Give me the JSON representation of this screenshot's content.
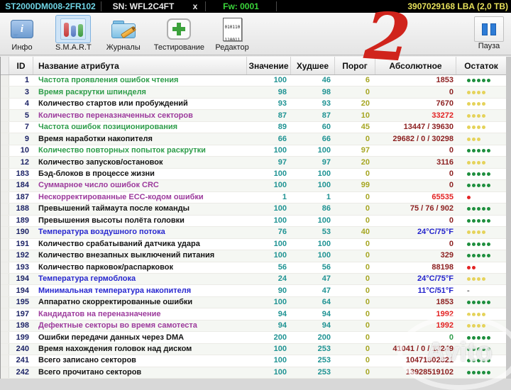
{
  "title_bar": {
    "model": "ST2000DM008-2FR102",
    "serial": "SN: WFL2C4FT",
    "x_label": "x",
    "firmware": "Fw: 0001",
    "capacity": "3907029168 LBA (2,0 TB)"
  },
  "toolbar": {
    "buttons": [
      {
        "label": "Инфо",
        "icon": "info-icon",
        "active": false
      },
      {
        "label": "S.M.A.R.T",
        "icon": "smart-icon",
        "active": true
      },
      {
        "label": "Журналы",
        "icon": "journals-icon",
        "active": false
      },
      {
        "label": "Тестирование",
        "icon": "testing-icon",
        "active": false
      },
      {
        "label": "Редактор",
        "icon": "editor-icon",
        "active": false
      }
    ],
    "editor_icon_text": "010110\n110011\n101000\n0001",
    "pause_label": "Пауза"
  },
  "annotation": {
    "text": "2",
    "color": "#d0241c"
  },
  "watermark": "Avito",
  "palette": {
    "id": "#1c2366",
    "name": {
      "green": "#2e9d4a",
      "black": "#141414",
      "purple": "#9c3a9c",
      "blue": "#2727cf"
    },
    "value": "#1f9393",
    "threshold": "#a6a622",
    "absolute": {
      "maroon": "#8c1f1f",
      "red": "#e32222",
      "blue": "#2222cc",
      "green": "#2e9d4a"
    },
    "dots": {
      "green": "#1e8f3e",
      "yellow": "#e5d35a",
      "red": "#e32424"
    },
    "dash": "#666666"
  },
  "table": {
    "columns": [
      "ID",
      "Название атрибута",
      "Значение",
      "Худшее",
      "Порог",
      "Абсолютное",
      "Остаток"
    ],
    "rows": [
      {
        "id": "1",
        "name": "Частота проявления ошибок чтения",
        "name_color": "green",
        "value": "100",
        "worst": "46",
        "threshold": "6",
        "absolute": "1853",
        "absolute_color": "maroon",
        "remain_dots": 5,
        "remain_color": "green"
      },
      {
        "id": "3",
        "name": "Время раскрутки шпинделя",
        "name_color": "green",
        "value": "98",
        "worst": "98",
        "threshold": "0",
        "absolute": "0",
        "absolute_color": "maroon",
        "remain_dots": 4,
        "remain_color": "yellow"
      },
      {
        "id": "4",
        "name": "Количество стартов или пробуждений",
        "name_color": "black",
        "value": "93",
        "worst": "93",
        "threshold": "20",
        "absolute": "7670",
        "absolute_color": "maroon",
        "remain_dots": 4,
        "remain_color": "yellow"
      },
      {
        "id": "5",
        "name": "Количество переназначенных секторов",
        "name_color": "purple",
        "value": "87",
        "worst": "87",
        "threshold": "10",
        "absolute": "33272",
        "absolute_color": "red",
        "remain_dots": 4,
        "remain_color": "yellow"
      },
      {
        "id": "7",
        "name": "Частота ошибок позиционирования",
        "name_color": "green",
        "value": "89",
        "worst": "60",
        "threshold": "45",
        "absolute": "13447 / 39630",
        "absolute_color": "maroon",
        "remain_dots": 4,
        "remain_color": "yellow"
      },
      {
        "id": "9",
        "name": "Время наработки накопителя",
        "name_color": "black",
        "value": "66",
        "worst": "66",
        "threshold": "0",
        "absolute": "29682 / 0 / 30298",
        "absolute_color": "maroon",
        "remain_dots": 3,
        "remain_color": "yellow"
      },
      {
        "id": "10",
        "name": "Количество повторных попыток раскрутки",
        "name_color": "green",
        "value": "100",
        "worst": "100",
        "threshold": "97",
        "absolute": "0",
        "absolute_color": "maroon",
        "remain_dots": 5,
        "remain_color": "green"
      },
      {
        "id": "12",
        "name": "Количество запусков/остановок",
        "name_color": "black",
        "value": "97",
        "worst": "97",
        "threshold": "20",
        "absolute": "3116",
        "absolute_color": "maroon",
        "remain_dots": 4,
        "remain_color": "yellow"
      },
      {
        "id": "183",
        "name": "Бэд-блоков в процессе жизни",
        "name_color": "black",
        "value": "100",
        "worst": "100",
        "threshold": "0",
        "absolute": "0",
        "absolute_color": "maroon",
        "remain_dots": 5,
        "remain_color": "green"
      },
      {
        "id": "184",
        "name": "Суммарное число ошибок CRC",
        "name_color": "purple",
        "value": "100",
        "worst": "100",
        "threshold": "99",
        "absolute": "0",
        "absolute_color": "maroon",
        "remain_dots": 5,
        "remain_color": "green"
      },
      {
        "id": "187",
        "name": "Нескорректированные ECC-кодом ошибки",
        "name_color": "purple",
        "value": "1",
        "worst": "1",
        "threshold": "0",
        "absolute": "65535",
        "absolute_color": "red",
        "remain_dots": 1,
        "remain_color": "red"
      },
      {
        "id": "188",
        "name": "Превышений таймаута после команды",
        "name_color": "black",
        "value": "100",
        "worst": "86",
        "threshold": "0",
        "absolute": "75 / 76 / 902",
        "absolute_color": "maroon",
        "remain_dots": 5,
        "remain_color": "green"
      },
      {
        "id": "189",
        "name": "Превышения высоты полёта головки",
        "name_color": "black",
        "value": "100",
        "worst": "100",
        "threshold": "0",
        "absolute": "0",
        "absolute_color": "maroon",
        "remain_dots": 5,
        "remain_color": "green"
      },
      {
        "id": "190",
        "name": "Температура воздушного потока",
        "name_color": "blue",
        "value": "76",
        "worst": "53",
        "threshold": "40",
        "absolute": "24°C/75°F",
        "absolute_color": "blue",
        "remain_dots": 4,
        "remain_color": "yellow"
      },
      {
        "id": "191",
        "name": "Количество срабатываний датчика удара",
        "name_color": "black",
        "value": "100",
        "worst": "100",
        "threshold": "0",
        "absolute": "0",
        "absolute_color": "maroon",
        "remain_dots": 5,
        "remain_color": "green"
      },
      {
        "id": "192",
        "name": "Количество внезапных выключений питания",
        "name_color": "black",
        "value": "100",
        "worst": "100",
        "threshold": "0",
        "absolute": "329",
        "absolute_color": "maroon",
        "remain_dots": 5,
        "remain_color": "green"
      },
      {
        "id": "193",
        "name": "Количество парковок/распарковок",
        "name_color": "black",
        "value": "56",
        "worst": "56",
        "threshold": "0",
        "absolute": "88198",
        "absolute_color": "maroon",
        "remain_dots": 2,
        "remain_color": "red"
      },
      {
        "id": "194",
        "name": "Температура гермоблока",
        "name_color": "blue",
        "value": "24",
        "worst": "47",
        "threshold": "0",
        "absolute": "24°C/75°F",
        "absolute_color": "blue",
        "remain_dots": 4,
        "remain_color": "yellow"
      },
      {
        "id": "194",
        "name": "Минимальная температура накопителя",
        "name_color": "blue",
        "value": "90",
        "worst": "47",
        "threshold": "0",
        "absolute": "11°C/51°F",
        "absolute_color": "blue",
        "remain_dots": 0,
        "remain_text": "-"
      },
      {
        "id": "195",
        "name": "Аппаратно скорректированные ошибки",
        "name_color": "black",
        "value": "100",
        "worst": "64",
        "threshold": "0",
        "absolute": "1853",
        "absolute_color": "maroon",
        "remain_dots": 5,
        "remain_color": "green"
      },
      {
        "id": "197",
        "name": "Кандидатов на переназначение",
        "name_color": "purple",
        "value": "94",
        "worst": "94",
        "threshold": "0",
        "absolute": "1992",
        "absolute_color": "red",
        "remain_dots": 4,
        "remain_color": "yellow"
      },
      {
        "id": "198",
        "name": "Дефектные секторы во время самотеста",
        "name_color": "purple",
        "value": "94",
        "worst": "94",
        "threshold": "0",
        "absolute": "1992",
        "absolute_color": "red",
        "remain_dots": 4,
        "remain_color": "yellow"
      },
      {
        "id": "199",
        "name": "Ошибки передачи данных через DMA",
        "name_color": "black",
        "value": "200",
        "worst": "200",
        "threshold": "0",
        "absolute": "0",
        "absolute_color": "green",
        "remain_dots": 5,
        "remain_color": "green"
      },
      {
        "id": "240",
        "name": "Время нахождения головок над диском",
        "name_color": "black",
        "value": "100",
        "worst": "253",
        "threshold": "0",
        "absolute": "41041 / 0 / 13249",
        "absolute_color": "maroon",
        "remain_dots": 5,
        "remain_color": "green"
      },
      {
        "id": "241",
        "name": "Всего записано секторов",
        "name_color": "black",
        "value": "100",
        "worst": "253",
        "threshold": "0",
        "absolute": "10471802821",
        "absolute_color": "maroon",
        "remain_dots": 5,
        "remain_color": "green"
      },
      {
        "id": "242",
        "name": "Всего прочитано секторов",
        "name_color": "black",
        "value": "100",
        "worst": "253",
        "threshold": "0",
        "absolute": "13928519102",
        "absolute_color": "maroon",
        "remain_dots": 5,
        "remain_color": "green"
      }
    ]
  }
}
